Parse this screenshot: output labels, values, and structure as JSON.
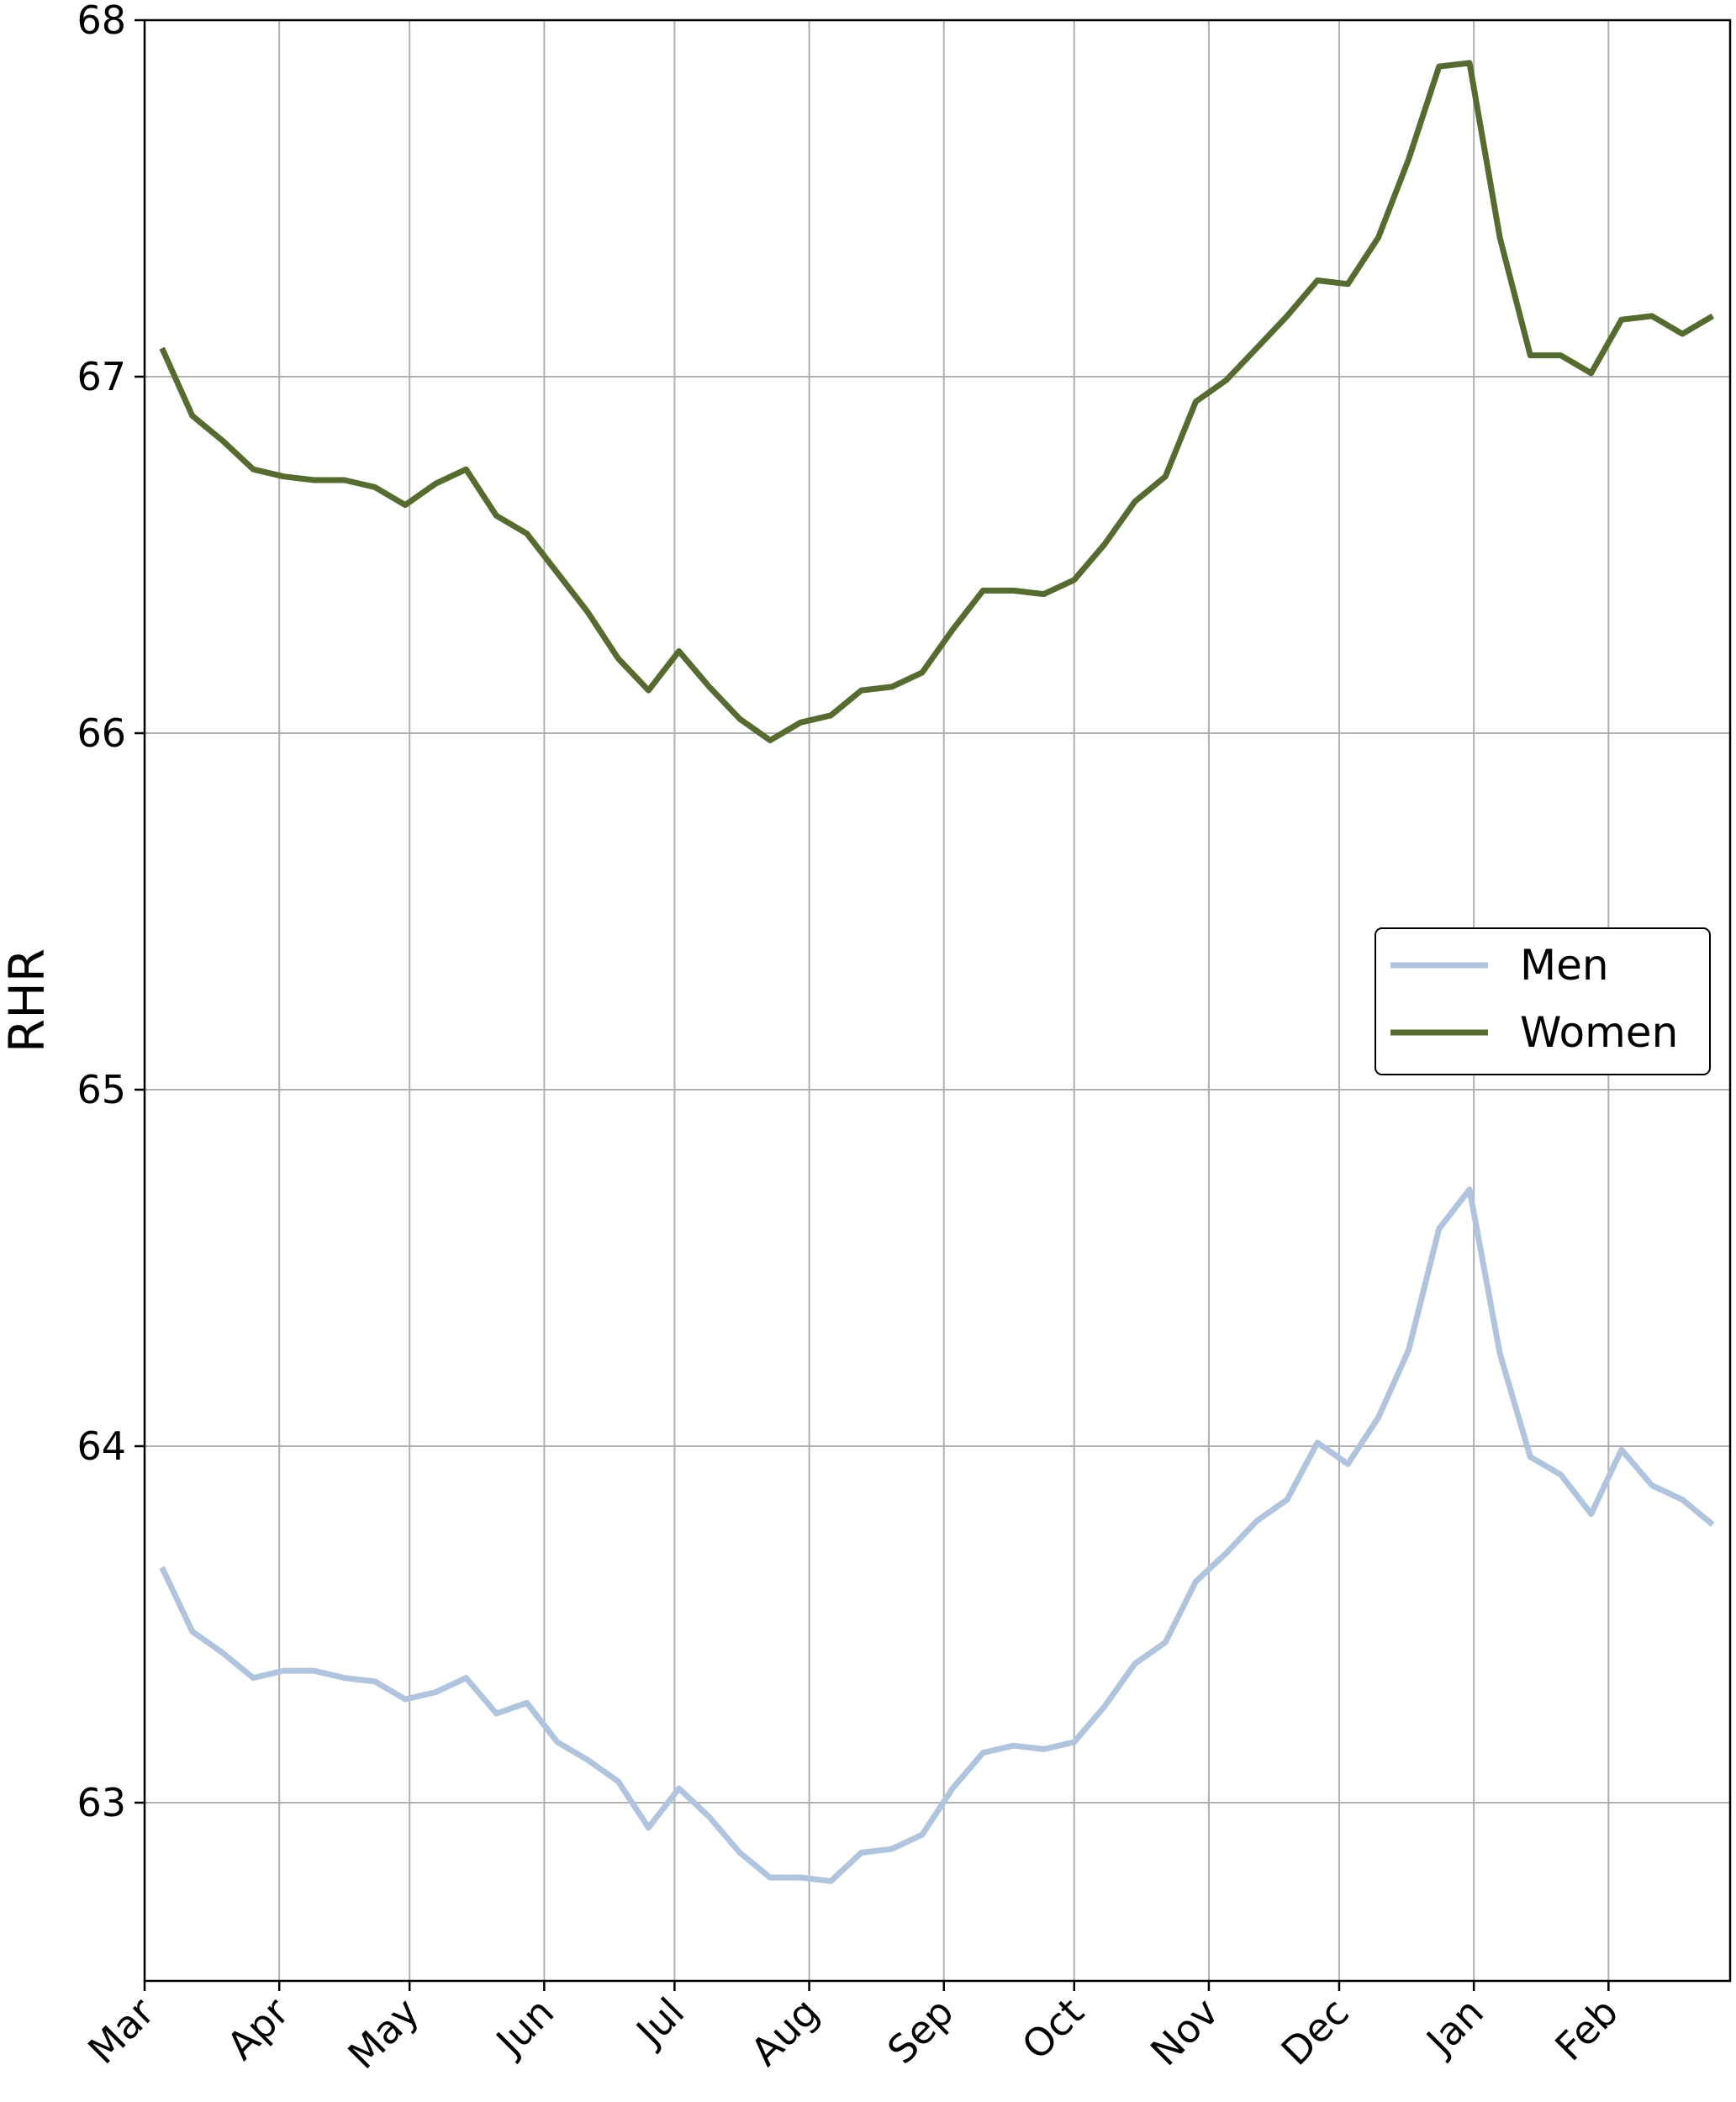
{
  "chart_data": {
    "type": "line",
    "title": "",
    "xlabel": "",
    "ylabel": "RHR",
    "ylim": [
      62.5,
      68
    ],
    "yticks": [
      63,
      64,
      65,
      66,
      67,
      68
    ],
    "xlim": [
      "2019-03-01",
      "2020-02-29"
    ],
    "xtick_labels": [
      "Mar",
      "Apr",
      "May",
      "Jun",
      "Jul",
      "Aug",
      "Sep",
      "Oct",
      "Nov",
      "Dec",
      "Jan",
      "Feb"
    ],
    "xtick_dates": [
      "2019-03-01",
      "2019-04-01",
      "2019-05-01",
      "2019-06-01",
      "2019-07-01",
      "2019-08-01",
      "2019-09-01",
      "2019-10-01",
      "2019-11-01",
      "2019-12-01",
      "2020-01-01",
      "2020-02-01"
    ],
    "grid": true,
    "legend_position": "center-right",
    "x": [
      "2019-03-05",
      "2019-03-12",
      "2019-03-19",
      "2019-03-26",
      "2019-04-02",
      "2019-04-09",
      "2019-04-16",
      "2019-04-23",
      "2019-04-30",
      "2019-05-07",
      "2019-05-14",
      "2019-05-21",
      "2019-05-28",
      "2019-06-04",
      "2019-06-11",
      "2019-06-18",
      "2019-06-25",
      "2019-07-02",
      "2019-07-09",
      "2019-07-16",
      "2019-07-23",
      "2019-07-30",
      "2019-08-06",
      "2019-08-13",
      "2019-08-20",
      "2019-08-27",
      "2019-09-03",
      "2019-09-10",
      "2019-09-17",
      "2019-09-24",
      "2019-10-01",
      "2019-10-08",
      "2019-10-15",
      "2019-10-22",
      "2019-10-29",
      "2019-11-05",
      "2019-11-12",
      "2019-11-19",
      "2019-11-26",
      "2019-12-03",
      "2019-12-10",
      "2019-12-17",
      "2019-12-24",
      "2019-12-31",
      "2020-01-07",
      "2020-01-14",
      "2020-01-21",
      "2020-01-28",
      "2020-02-04",
      "2020-02-11",
      "2020-02-18",
      "2020-02-25"
    ],
    "series": [
      {
        "name": "Men",
        "color": "#b0c4de",
        "values": [
          63.66,
          63.48,
          63.42,
          63.35,
          63.37,
          63.37,
          63.35,
          63.34,
          63.29,
          63.31,
          63.35,
          63.25,
          63.28,
          63.17,
          63.12,
          63.06,
          62.93,
          63.04,
          62.96,
          62.86,
          62.79,
          62.79,
          62.78,
          62.86,
          62.87,
          62.91,
          63.04,
          63.14,
          63.16,
          63.15,
          63.17,
          63.27,
          63.39,
          63.45,
          63.62,
          63.7,
          63.79,
          63.85,
          64.01,
          63.95,
          64.08,
          64.27,
          64.61,
          64.72,
          64.26,
          63.97,
          63.92,
          63.81,
          63.99,
          63.89,
          63.85,
          63.78
        ]
      },
      {
        "name": "Women",
        "color": "#556b2f",
        "values": [
          67.08,
          66.89,
          66.82,
          66.74,
          66.72,
          66.71,
          66.71,
          66.69,
          66.64,
          66.7,
          66.74,
          66.61,
          66.56,
          66.45,
          66.34,
          66.21,
          66.12,
          66.23,
          66.13,
          66.04,
          65.98,
          66.03,
          66.05,
          66.12,
          66.13,
          66.17,
          66.29,
          66.4,
          66.4,
          66.39,
          66.43,
          66.53,
          66.65,
          66.72,
          66.93,
          66.99,
          67.08,
          67.17,
          67.27,
          67.26,
          67.39,
          67.61,
          67.87,
          67.88,
          67.39,
          67.06,
          67.06,
          67.01,
          67.16,
          67.17,
          67.12,
          67.17
        ]
      }
    ]
  }
}
